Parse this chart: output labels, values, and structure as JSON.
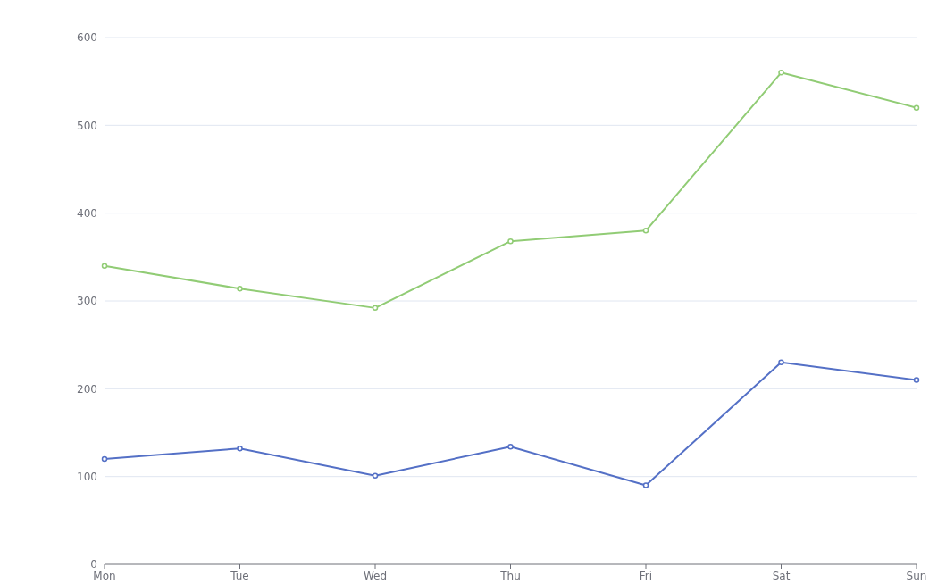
{
  "chart_data": {
    "type": "line",
    "categories": [
      "Mon",
      "Tue",
      "Wed",
      "Thu",
      "Fri",
      "Sat",
      "Sun"
    ],
    "series": [
      {
        "color": "#5470c6",
        "values": [
          120,
          132,
          101,
          134,
          90,
          230,
          210
        ]
      },
      {
        "color": "#91cc75",
        "values": [
          340,
          314,
          292,
          368,
          380,
          560,
          520
        ]
      }
    ],
    "ylim": [
      0,
      600
    ],
    "yticks": [
      0,
      100,
      200,
      300,
      400,
      500,
      600
    ],
    "grid": "y",
    "marker": "circle",
    "line_style": "solid"
  }
}
